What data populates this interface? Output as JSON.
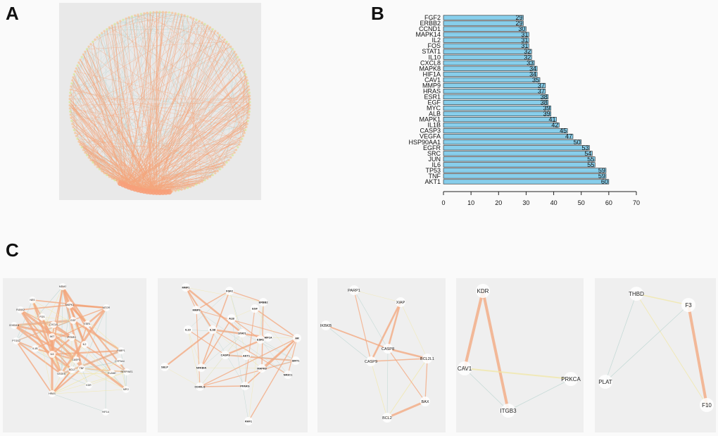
{
  "panels": {
    "a": "A",
    "b": "B",
    "c": "C"
  },
  "chart_data": {
    "type": "bar",
    "orientation": "horizontal",
    "categories": [
      "FGF2",
      "ERBB2",
      "CCND1",
      "MAPK14",
      "IL2",
      "FOS",
      "STAT1",
      "IL10",
      "CXCL8",
      "MAPK8",
      "HIF1A",
      "CAV1",
      "MMP9",
      "HRAS",
      "ESR1",
      "EGF",
      "MYC",
      "ALB",
      "MAPK1",
      "IL1B",
      "CASP3",
      "VEGFA",
      "HSP90AA1",
      "EGFR",
      "SRC",
      "JUN",
      "IL6",
      "TP53",
      "TNF",
      "AKT1"
    ],
    "values": [
      29,
      29,
      30,
      31,
      31,
      31,
      32,
      32,
      33,
      34,
      34,
      35,
      37,
      37,
      38,
      38,
      39,
      39,
      41,
      42,
      45,
      47,
      50,
      53,
      54,
      55,
      55,
      59,
      59,
      60
    ],
    "xlim": [
      0,
      70
    ],
    "xticks": [
      0,
      10,
      20,
      30,
      40,
      50,
      60,
      70
    ],
    "bar_color": "#87ceeb",
    "bar_edge": "#222222",
    "grid": false
  },
  "networks": {
    "c1": {
      "nodes": [
        "MDM2",
        "NES",
        "MAPK1",
        "MTOR",
        "RUNX2",
        "CDKN1A",
        "EGF",
        "ESR1",
        "FOS",
        "CXCL8",
        "AKT",
        "PPARG",
        "PTGS2",
        "IL1B",
        "IL6",
        "IL2",
        "CASP3",
        "BCL2",
        "TNF",
        "VEGFA",
        "PARP1",
        "CYP3A4",
        "ELANE",
        "SERPINE1",
        "KDR",
        "MPO",
        "HRAS",
        "HIF1A"
      ]
    },
    "c2": {
      "nodes": [
        "MMP1",
        "FGF2",
        "ERBB2",
        "MMP9",
        "EGF",
        "ALB",
        "IL10",
        "IL1B",
        "STAT1",
        "HIF1A",
        "ESR1",
        "AR",
        "CASP3",
        "AKT1",
        "SIRT1",
        "SELP",
        "NFKBIA",
        "MAPK8",
        "NR3C1",
        "CD40LG",
        "PPARG",
        "RAF1"
      ]
    },
    "c3": {
      "nodes": [
        "PARP1",
        "XIAP",
        "IKBKB",
        "CASP8",
        "CASP9",
        "BCL2L1",
        "BAX",
        "BCL2"
      ]
    },
    "c4": {
      "nodes": [
        "KDR",
        "CAV1",
        "PRKCA",
        "ITGB3"
      ]
    },
    "c5": {
      "nodes": [
        "THBD",
        "F3",
        "PLAT",
        "F10"
      ]
    }
  },
  "colors": {
    "edge_strong": "#f4a67c",
    "edge_weak": "#b8d4cf",
    "edge_yellow": "#f1e7a6",
    "node_fill": "#ffffff"
  }
}
